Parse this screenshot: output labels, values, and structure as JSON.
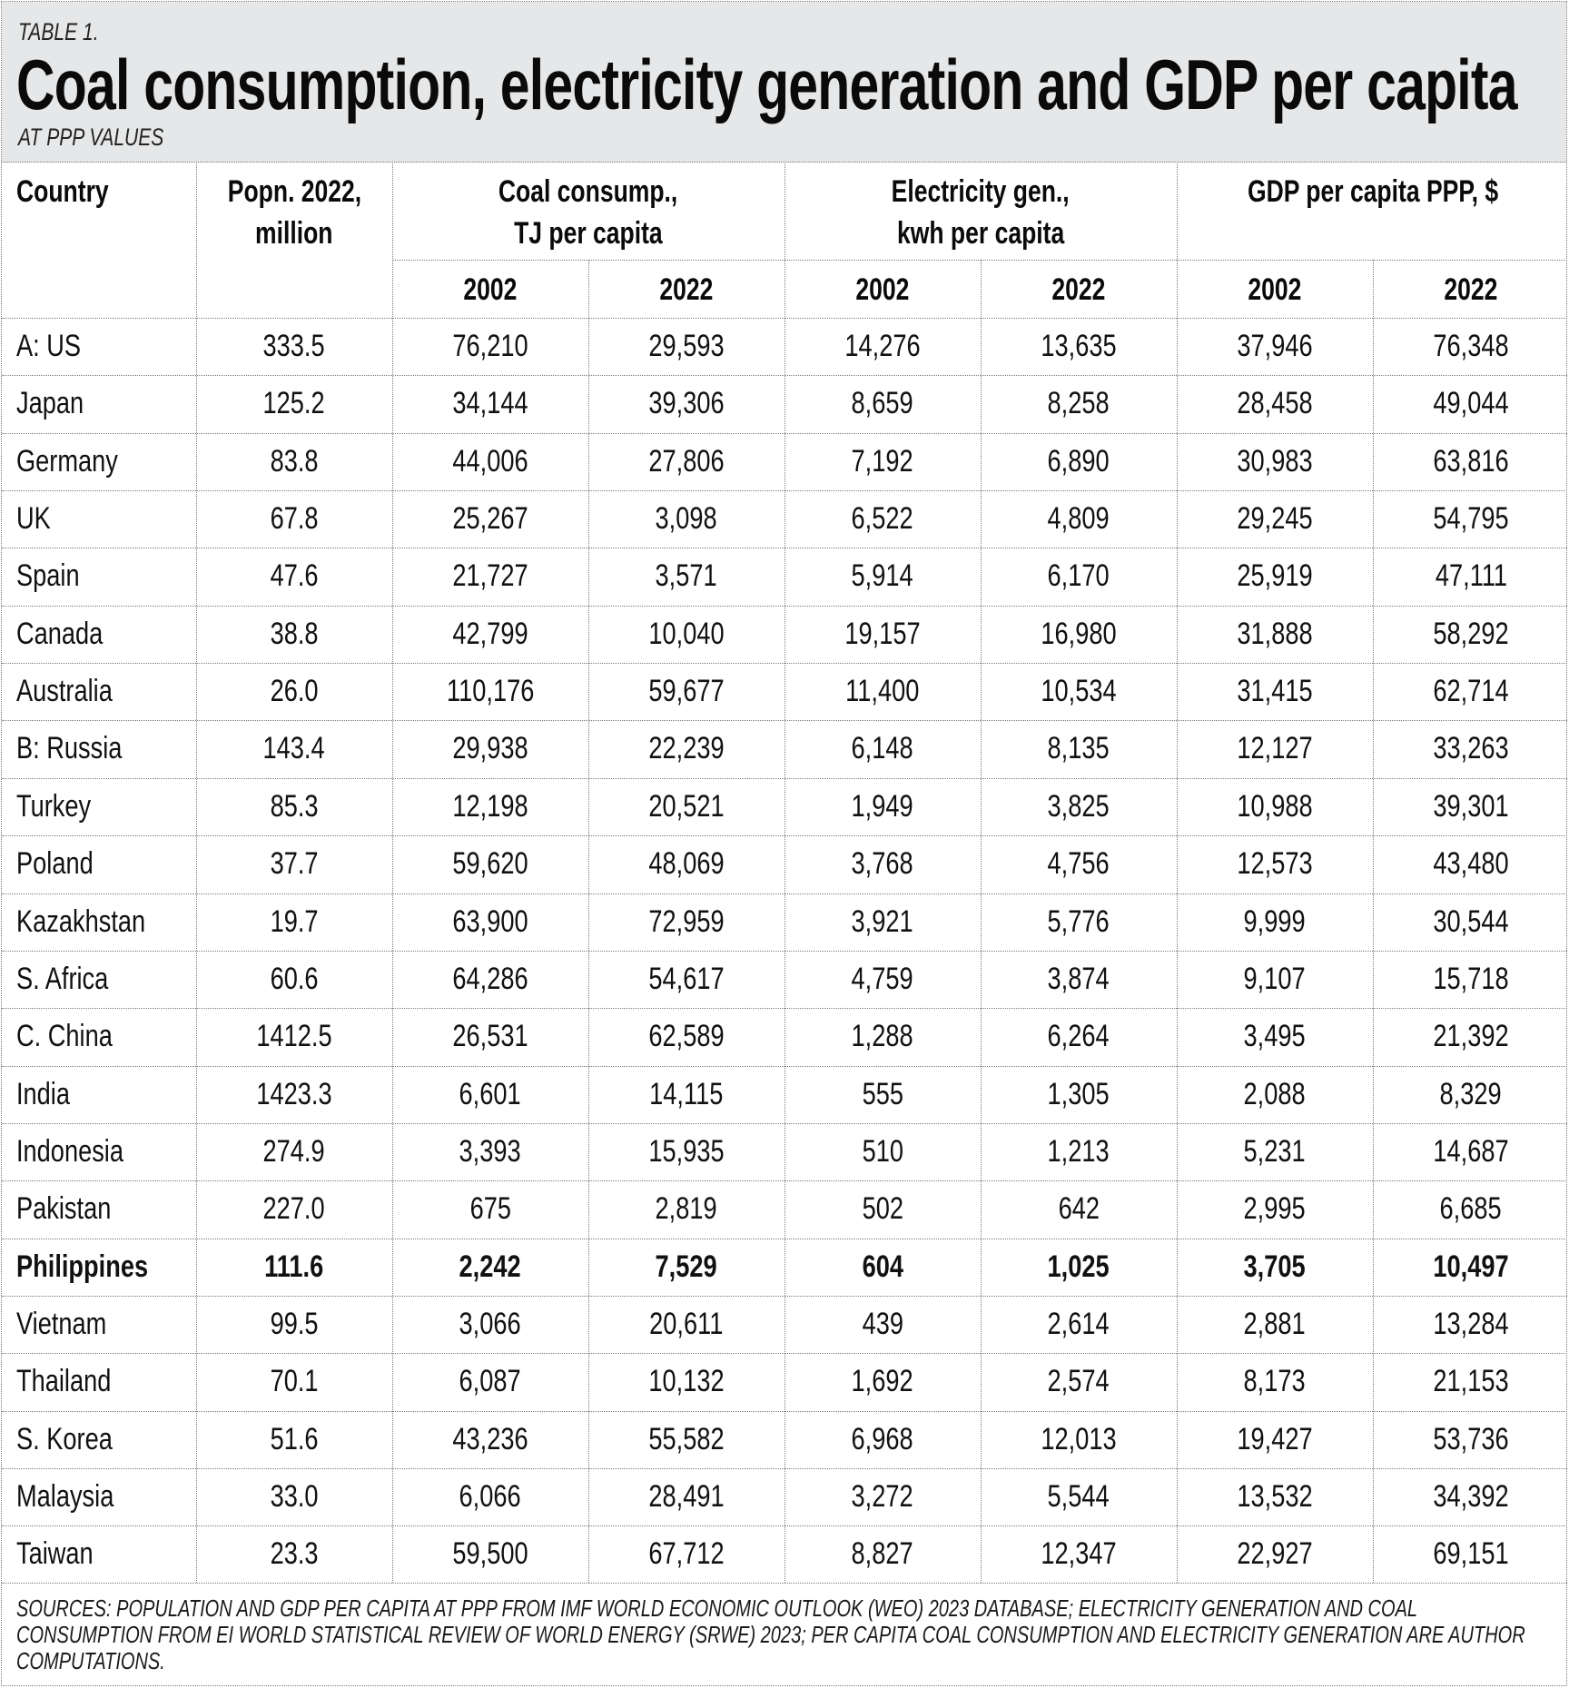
{
  "header": {
    "label": "TABLE 1.",
    "title": "Coal consumption, electricity generation and GDP per capita",
    "subtitle": "AT PPP VALUES"
  },
  "columns": {
    "country": "Country",
    "population": [
      "Popn. 2022,",
      "million"
    ],
    "coal": [
      "Coal consump.,",
      "TJ per capita"
    ],
    "electricity": [
      "Electricity gen.,",
      "kwh per capita"
    ],
    "gdp": [
      "GDP per capita PPP, $"
    ],
    "years": [
      "2002",
      "2022",
      "2002",
      "2022",
      "2002",
      "2022"
    ]
  },
  "rows": [
    {
      "country": "A: US",
      "pop": "333.5",
      "coal2002": "76,210",
      "coal2022": "29,593",
      "elec2002": "14,276",
      "elec2022": "13,635",
      "gdp2002": "37,946",
      "gdp2022": "76,348",
      "highlight": false
    },
    {
      "country": "Japan",
      "pop": "125.2",
      "coal2002": "34,144",
      "coal2022": "39,306",
      "elec2002": "8,659",
      "elec2022": "8,258",
      "gdp2002": "28,458",
      "gdp2022": "49,044",
      "highlight": false
    },
    {
      "country": "Germany",
      "pop": "83.8",
      "coal2002": "44,006",
      "coal2022": "27,806",
      "elec2002": "7,192",
      "elec2022": "6,890",
      "gdp2002": "30,983",
      "gdp2022": "63,816",
      "highlight": false
    },
    {
      "country": "UK",
      "pop": "67.8",
      "coal2002": "25,267",
      "coal2022": "3,098",
      "elec2002": "6,522",
      "elec2022": "4,809",
      "gdp2002": "29,245",
      "gdp2022": "54,795",
      "highlight": false
    },
    {
      "country": "Spain",
      "pop": "47.6",
      "coal2002": "21,727",
      "coal2022": "3,571",
      "elec2002": "5,914",
      "elec2022": "6,170",
      "gdp2002": "25,919",
      "gdp2022": "47,111",
      "highlight": false
    },
    {
      "country": "Canada",
      "pop": "38.8",
      "coal2002": "42,799",
      "coal2022": "10,040",
      "elec2002": "19,157",
      "elec2022": "16,980",
      "gdp2002": "31,888",
      "gdp2022": "58,292",
      "highlight": false
    },
    {
      "country": "Australia",
      "pop": "26.0",
      "coal2002": "110,176",
      "coal2022": "59,677",
      "elec2002": "11,400",
      "elec2022": "10,534",
      "gdp2002": "31,415",
      "gdp2022": "62,714",
      "highlight": false
    },
    {
      "country": "B: Russia",
      "pop": "143.4",
      "coal2002": "29,938",
      "coal2022": "22,239",
      "elec2002": "6,148",
      "elec2022": "8,135",
      "gdp2002": "12,127",
      "gdp2022": "33,263",
      "highlight": false
    },
    {
      "country": "Turkey",
      "pop": "85.3",
      "coal2002": "12,198",
      "coal2022": "20,521",
      "elec2002": "1,949",
      "elec2022": "3,825",
      "gdp2002": "10,988",
      "gdp2022": "39,301",
      "highlight": false
    },
    {
      "country": "Poland",
      "pop": "37.7",
      "coal2002": "59,620",
      "coal2022": "48,069",
      "elec2002": "3,768",
      "elec2022": "4,756",
      "gdp2002": "12,573",
      "gdp2022": "43,480",
      "highlight": false
    },
    {
      "country": "Kazakhstan",
      "pop": "19.7",
      "coal2002": "63,900",
      "coal2022": "72,959",
      "elec2002": "3,921",
      "elec2022": "5,776",
      "gdp2002": "9,999",
      "gdp2022": "30,544",
      "highlight": false
    },
    {
      "country": "S. Africa",
      "pop": "60.6",
      "coal2002": "64,286",
      "coal2022": "54,617",
      "elec2002": "4,759",
      "elec2022": "3,874",
      "gdp2002": "9,107",
      "gdp2022": "15,718",
      "highlight": false
    },
    {
      "country": "C. China",
      "pop": "1412.5",
      "coal2002": "26,531",
      "coal2022": "62,589",
      "elec2002": "1,288",
      "elec2022": "6,264",
      "gdp2002": "3,495",
      "gdp2022": "21,392",
      "highlight": false
    },
    {
      "country": "India",
      "pop": "1423.3",
      "coal2002": "6,601",
      "coal2022": "14,115",
      "elec2002": "555",
      "elec2022": "1,305",
      "gdp2002": "2,088",
      "gdp2022": "8,329",
      "highlight": false
    },
    {
      "country": "Indonesia",
      "pop": "274.9",
      "coal2002": "3,393",
      "coal2022": "15,935",
      "elec2002": "510",
      "elec2022": "1,213",
      "gdp2002": "5,231",
      "gdp2022": "14,687",
      "highlight": false
    },
    {
      "country": "Pakistan",
      "pop": "227.0",
      "coal2002": "675",
      "coal2022": "2,819",
      "elec2002": "502",
      "elec2022": "642",
      "gdp2002": "2,995",
      "gdp2022": "6,685",
      "highlight": false
    },
    {
      "country": "Philippines",
      "pop": "111.6",
      "coal2002": "2,242",
      "coal2022": "7,529",
      "elec2002": "604",
      "elec2022": "1,025",
      "gdp2002": "3,705",
      "gdp2022": "10,497",
      "highlight": true
    },
    {
      "country": "Vietnam",
      "pop": "99.5",
      "coal2002": "3,066",
      "coal2022": "20,611",
      "elec2002": "439",
      "elec2022": "2,614",
      "gdp2002": "2,881",
      "gdp2022": "13,284",
      "highlight": false
    },
    {
      "country": "Thailand",
      "pop": "70.1",
      "coal2002": "6,087",
      "coal2022": "10,132",
      "elec2002": "1,692",
      "elec2022": "2,574",
      "gdp2002": "8,173",
      "gdp2022": "21,153",
      "highlight": false
    },
    {
      "country": "S. Korea",
      "pop": "51.6",
      "coal2002": "43,236",
      "coal2022": "55,582",
      "elec2002": "6,968",
      "elec2022": "12,013",
      "gdp2002": "19,427",
      "gdp2022": "53,736",
      "highlight": false
    },
    {
      "country": "Malaysia",
      "pop": "33.0",
      "coal2002": "6,066",
      "coal2022": "28,491",
      "elec2002": "3,272",
      "elec2022": "5,544",
      "gdp2002": "13,532",
      "gdp2022": "34,392",
      "highlight": false
    },
    {
      "country": "Taiwan",
      "pop": "23.3",
      "coal2002": "59,500",
      "coal2022": "67,712",
      "elec2002": "8,827",
      "elec2022": "12,347",
      "gdp2002": "22,927",
      "gdp2022": "69,151",
      "highlight": false
    }
  ],
  "footer": {
    "sources": "SOURCES: POPULATION AND GDP PER CAPITA AT PPP FROM IMF WORLD ECONOMIC OUTLOOK (WEO) 2023 DATABASE; ELECTRICITY GENERATION AND COAL CONSUMPTION FROM EI WORLD STATISTICAL REVIEW OF WORLD ENERGY (SRWE) 2023; PER CAPITA COAL CONSUMPTION AND ELECTRICITY GENERATION ARE AUTHOR COMPUTATIONS."
  },
  "colors": {
    "header_band": "#e6e7e8",
    "grid": "#7a7a7a",
    "text": "#111111"
  }
}
